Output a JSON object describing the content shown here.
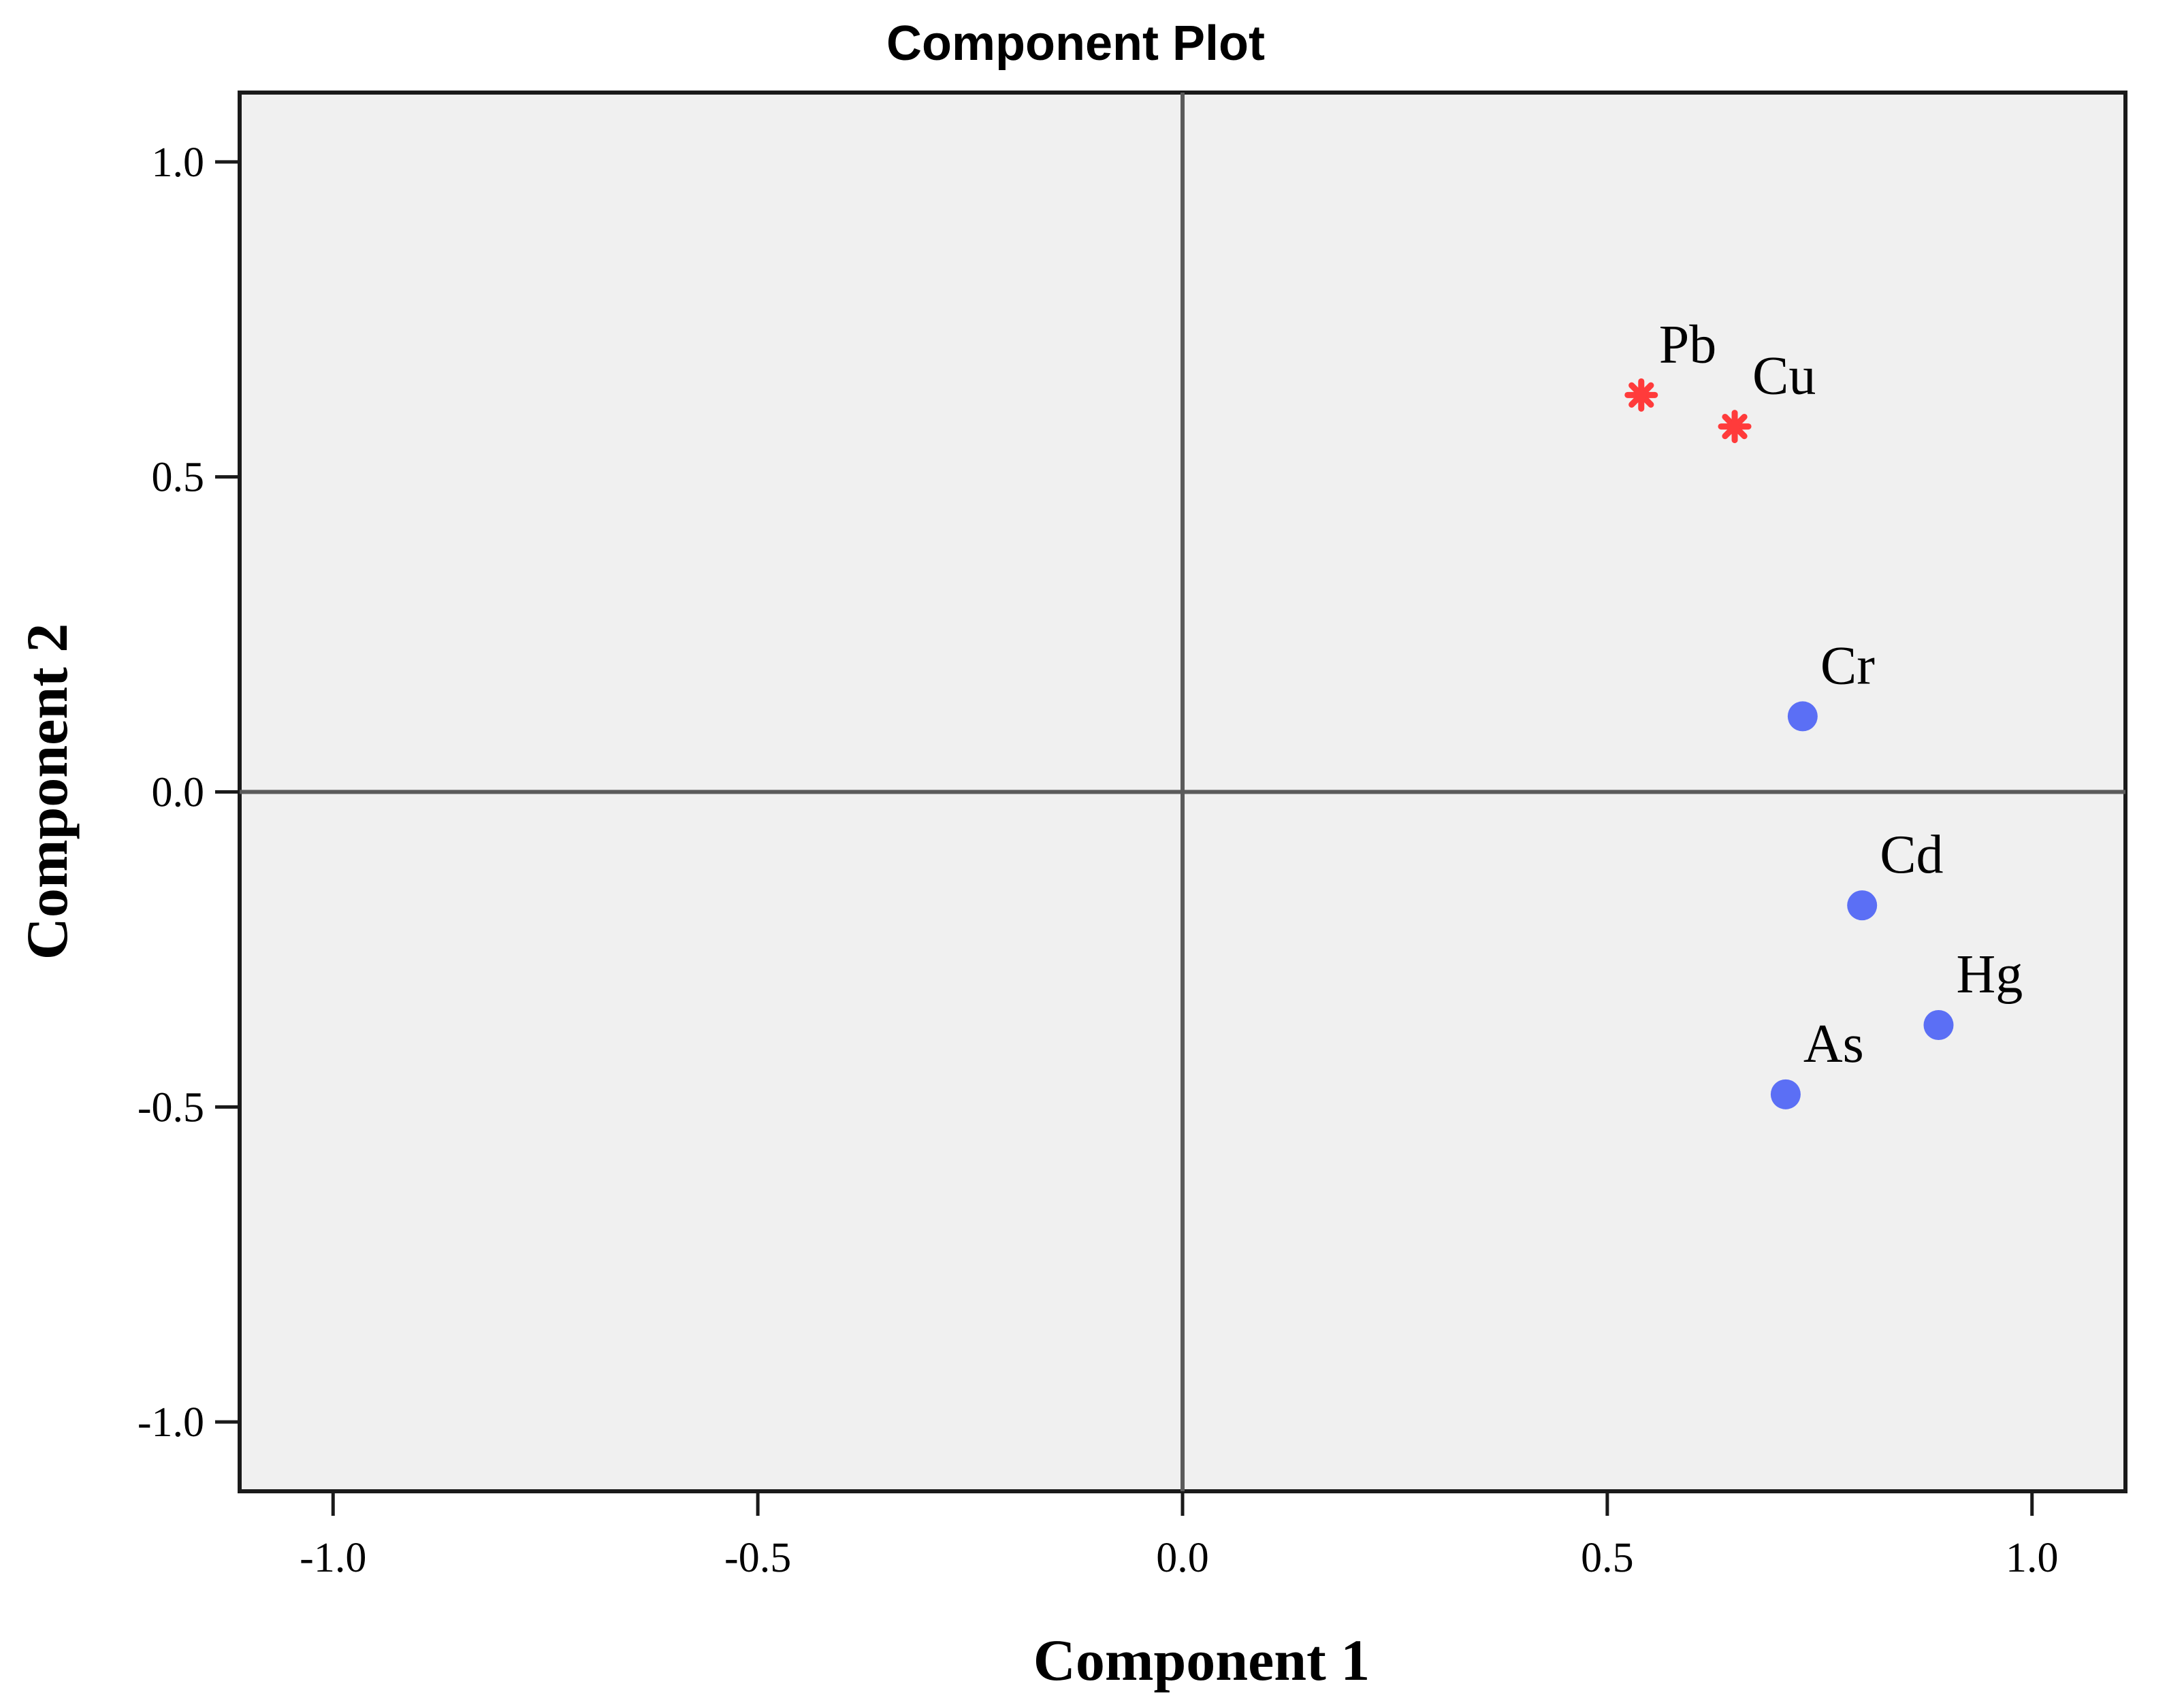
{
  "chart_data": {
    "type": "scatter",
    "title": "Component Plot",
    "xlabel": "Component 1",
    "ylabel": "Component 2",
    "xlim": [
      -1.11,
      1.11
    ],
    "ylim": [
      -1.11,
      1.11
    ],
    "xticks": [
      -1.0,
      -0.5,
      0.0,
      0.5,
      1.0
    ],
    "yticks": [
      -1.0,
      -0.5,
      0.0,
      0.5,
      1.0
    ],
    "xtick_labels": [
      "-1.0",
      "-0.5",
      "0.0",
      "0.5",
      "1.0"
    ],
    "ytick_labels": [
      "-1.0",
      "-0.5",
      "0.0",
      "0.5",
      "1.0"
    ],
    "grid": false,
    "reference_lines": {
      "x": 0,
      "y": 0
    },
    "plot_background": "#f0f0f0",
    "points": [
      {
        "label": "Pb",
        "x": 0.54,
        "y": 0.63,
        "marker": "star",
        "color": "#ff3b3b"
      },
      {
        "label": "Cu",
        "x": 0.65,
        "y": 0.58,
        "marker": "star",
        "color": "#ff3b3b"
      },
      {
        "label": "Cr",
        "x": 0.73,
        "y": 0.12,
        "marker": "circle",
        "color": "#5b6ff5"
      },
      {
        "label": "Cd",
        "x": 0.8,
        "y": -0.18,
        "marker": "circle",
        "color": "#5b6ff5"
      },
      {
        "label": "Hg",
        "x": 0.89,
        "y": -0.37,
        "marker": "circle",
        "color": "#5b6ff5"
      },
      {
        "label": "As",
        "x": 0.71,
        "y": -0.48,
        "marker": "circle",
        "color": "#5b6ff5"
      }
    ]
  }
}
